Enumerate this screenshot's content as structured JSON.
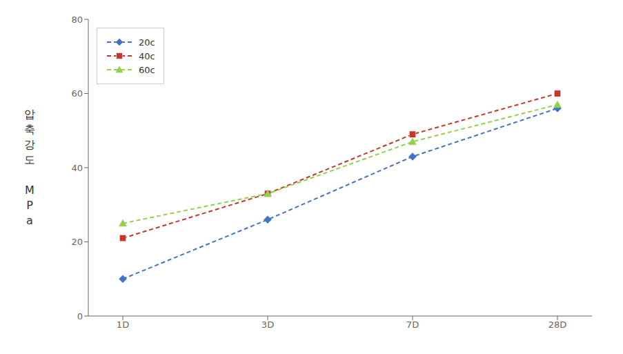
{
  "chart_data": {
    "type": "line",
    "ylabel": "압\n축\n강\n도\n\nM\nP\na",
    "categories": [
      "1D",
      "3D",
      "7D",
      "28D"
    ],
    "series": [
      {
        "name": "20c",
        "color": "#4472C4",
        "values": [
          10,
          26,
          43,
          56
        ],
        "marker": "diamond",
        "line_style": "dashed"
      },
      {
        "name": "40c",
        "color": "#C0392B",
        "values": [
          21,
          33,
          49,
          60
        ],
        "marker": "square",
        "line_style": "dashed"
      },
      {
        "name": "60c",
        "color": "#92D050",
        "values": [
          25,
          33,
          47,
          57
        ],
        "marker": "triangle",
        "line_style": "dashed"
      }
    ],
    "ylim": [
      0,
      80
    ],
    "yticks": [
      0,
      20,
      40,
      60,
      80
    ],
    "grid": false,
    "legend": "upper left"
  }
}
